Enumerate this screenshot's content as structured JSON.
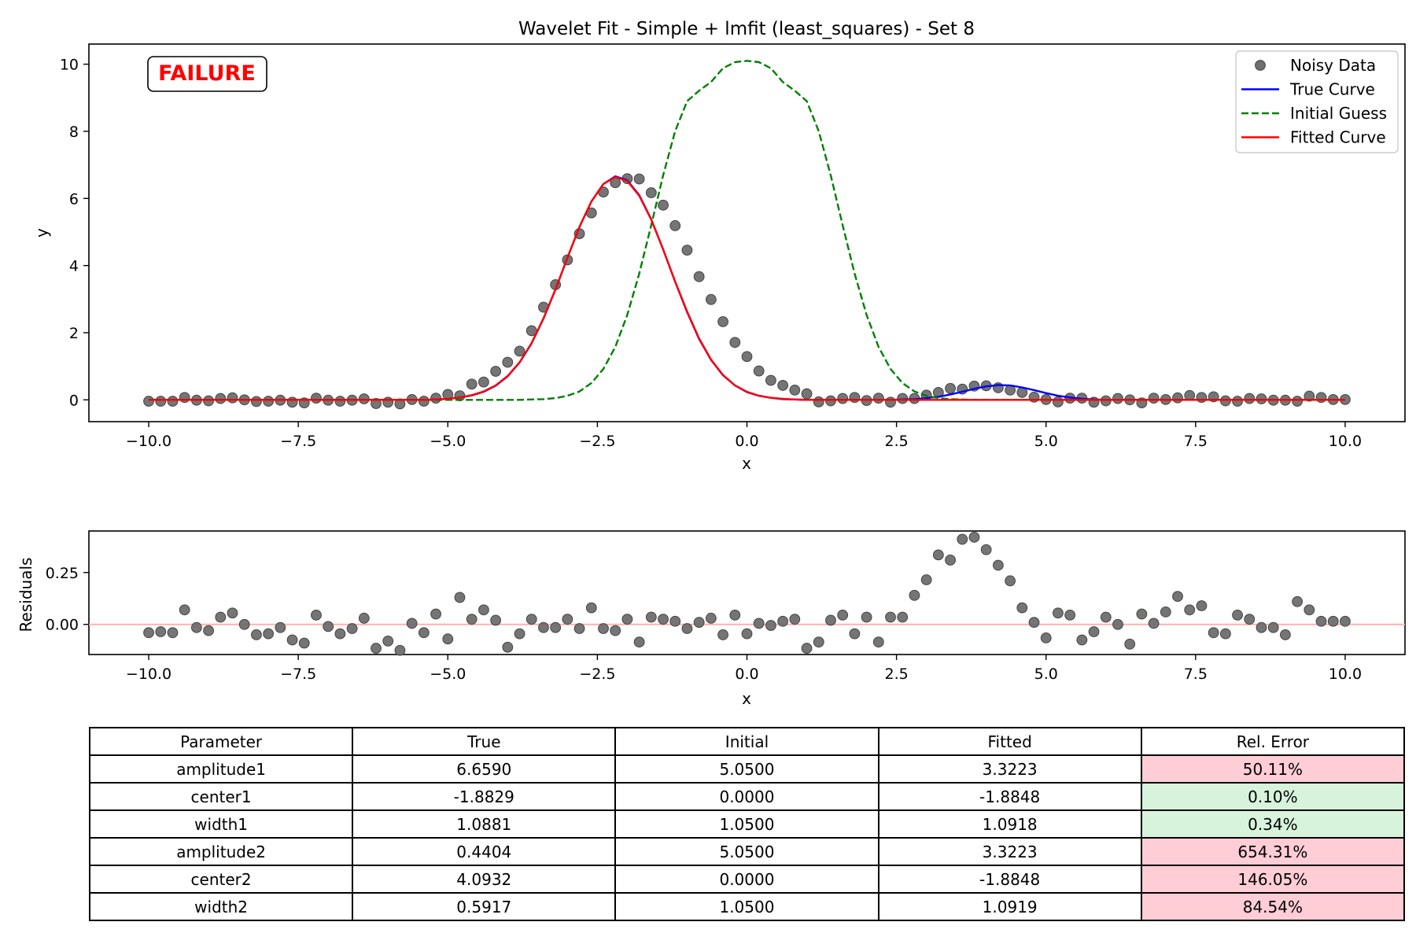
{
  "chart_data": [
    {
      "type": "line",
      "title": "Wavelet Fit - Simple + lmfit (least_squares) - Set 8",
      "xlabel": "x",
      "ylabel": "y",
      "xlim": [
        -11.0,
        11.0
      ],
      "ylim": [
        -0.65,
        10.6
      ],
      "x_ticks": [
        -10.0,
        -7.5,
        -5.0,
        -2.5,
        0.0,
        2.5,
        5.0,
        7.5,
        10.0
      ],
      "x_tick_labels": [
        "−10.0",
        "−7.5",
        "−5.0",
        "−2.5",
        "0.0",
        "2.5",
        "5.0",
        "7.5",
        "10.0"
      ],
      "y_ticks": [
        0,
        2,
        4,
        6,
        8,
        10
      ],
      "y_tick_labels": [
        "0",
        "2",
        "4",
        "6",
        "8",
        "10"
      ],
      "grid": false,
      "legend_position": "top-right",
      "annotation": "FAILURE",
      "x": [
        -10.0,
        -9.8,
        -9.6,
        -9.4,
        -9.2,
        -9.0,
        -8.8,
        -8.6,
        -8.4,
        -8.2,
        -8.0,
        -7.8,
        -7.6,
        -7.4,
        -7.2,
        -7.0,
        -6.8,
        -6.6,
        -6.4,
        -6.2,
        -6.0,
        -5.8,
        -5.6,
        -5.4,
        -5.2,
        -5.0,
        -4.8,
        -4.6,
        -4.4,
        -4.2,
        -4.0,
        -3.8,
        -3.6,
        -3.4,
        -3.2,
        -3.0,
        -2.8,
        -2.6,
        -2.4,
        -2.2,
        -2.0,
        -1.8,
        -1.6,
        -1.4,
        -1.2,
        -1.0,
        -0.8,
        -0.6,
        -0.4,
        -0.2,
        0.0,
        0.2,
        0.4,
        0.6,
        0.8,
        1.0,
        1.2,
        1.4,
        1.6,
        1.8,
        2.0,
        2.2,
        2.4,
        2.6,
        2.8,
        3.0,
        3.2,
        3.4,
        3.6,
        3.8,
        4.0,
        4.2,
        4.4,
        4.6,
        4.8,
        5.0,
        5.2,
        5.4,
        5.6,
        5.8,
        6.0,
        6.2,
        6.4,
        6.6,
        6.8,
        7.0,
        7.2,
        7.4,
        7.6,
        7.8,
        8.0,
        8.2,
        8.4,
        8.6,
        8.8,
        9.0,
        9.2,
        9.4,
        9.6,
        9.8,
        10.0
      ],
      "series": [
        {
          "name": "Noisy Data",
          "style": "scatter",
          "color": "#6e6e6e",
          "y": [
            -0.04,
            -0.04,
            -0.04,
            0.07,
            -0.01,
            -0.03,
            0.04,
            0.06,
            0.0,
            -0.05,
            -0.04,
            -0.01,
            -0.07,
            -0.09,
            0.05,
            -0.01,
            -0.04,
            -0.01,
            0.03,
            -0.11,
            -0.07,
            -0.12,
            0.01,
            -0.04,
            0.05,
            0.16,
            0.12,
            0.47,
            0.53,
            0.85,
            1.12,
            1.45,
            2.06,
            2.76,
            3.43,
            4.17,
            4.95,
            5.57,
            6.19,
            6.47,
            6.59,
            6.58,
            6.17,
            5.8,
            5.19,
            4.46,
            3.67,
            2.99,
            2.33,
            1.71,
            1.29,
            0.86,
            0.58,
            0.43,
            0.29,
            0.18,
            -0.06,
            -0.03,
            0.04,
            0.07,
            -0.02,
            0.05,
            -0.07,
            0.04,
            0.04,
            0.14,
            0.22,
            0.34,
            0.32,
            0.41,
            0.42,
            0.36,
            0.29,
            0.22,
            0.08,
            0.01,
            -0.06,
            0.05,
            0.05,
            -0.07,
            -0.03,
            0.04,
            0.0,
            -0.09,
            0.05,
            0.01,
            0.06,
            0.13,
            0.07,
            0.09,
            -0.03,
            -0.04,
            0.04,
            0.03,
            -0.01,
            -0.01,
            -0.04,
            0.11,
            0.07,
            0.01,
            0.01
          ]
        },
        {
          "name": "True Curve",
          "style": "solid",
          "color": "#0000ff",
          "y": [
            0.0,
            0.0,
            0.0,
            0.0,
            0.0,
            0.0,
            0.0,
            0.0,
            0.0,
            0.0,
            0.0,
            0.0,
            0.0,
            0.0,
            0.0,
            0.0,
            0.0,
            0.0,
            0.0,
            0.0,
            0.0,
            0.0,
            0.0,
            0.0,
            0.01,
            0.03,
            0.07,
            0.13,
            0.24,
            0.42,
            0.7,
            1.11,
            1.68,
            2.42,
            3.29,
            4.24,
            5.15,
            5.91,
            6.43,
            6.66,
            6.54,
            6.1,
            5.38,
            4.48,
            3.52,
            2.61,
            1.81,
            1.19,
            0.73,
            0.43,
            0.23,
            0.12,
            0.06,
            0.02,
            0.01,
            0.0,
            0.0,
            0.0,
            0.0,
            0.0,
            0.0,
            0.0,
            0.0,
            0.01,
            0.02,
            0.05,
            0.09,
            0.16,
            0.24,
            0.33,
            0.4,
            0.44,
            0.43,
            0.37,
            0.29,
            0.2,
            0.12,
            0.07,
            0.03,
            0.01,
            0.0,
            0.0,
            0.0,
            0.0,
            0.0,
            0.0,
            0.0,
            0.0,
            0.0,
            0.0,
            0.0,
            0.0,
            0.0,
            0.0,
            0.0,
            0.0,
            0.0,
            0.0,
            0.0,
            0.0,
            0.0
          ]
        },
        {
          "name": "Initial Guess",
          "style": "dashed",
          "color": "#008000",
          "y": [
            0.0,
            0.0,
            0.0,
            0.0,
            0.0,
            0.0,
            0.0,
            0.0,
            0.0,
            0.0,
            0.0,
            0.0,
            0.0,
            0.0,
            0.0,
            0.0,
            0.0,
            0.0,
            0.0,
            0.0,
            0.0,
            0.0,
            0.0,
            0.0,
            0.0,
            0.0,
            0.0,
            0.0,
            0.0,
            0.0,
            0.0,
            0.0,
            0.01,
            0.02,
            0.05,
            0.12,
            0.25,
            0.5,
            0.92,
            1.58,
            2.53,
            3.76,
            5.2,
            6.69,
            8.0,
            8.9,
            9.21,
            9.47,
            9.88,
            10.06,
            10.1,
            10.06,
            9.88,
            9.47,
            9.21,
            8.9,
            8.0,
            6.69,
            5.2,
            3.76,
            2.53,
            1.58,
            0.92,
            0.5,
            0.25,
            0.12,
            0.05,
            0.02,
            0.01,
            0.0,
            0.0,
            0.0,
            0.0,
            0.0,
            0.0,
            0.0,
            0.0,
            0.0,
            0.0,
            0.0,
            0.0,
            0.0,
            0.0,
            0.0,
            0.0,
            0.0,
            0.0,
            0.0,
            0.0,
            0.0,
            0.0,
            0.0,
            0.0,
            0.0,
            0.0,
            0.0,
            0.0,
            0.0,
            0.0,
            0.0,
            0.0
          ]
        },
        {
          "name": "Fitted Curve",
          "style": "solid",
          "color": "#ff0000",
          "y": [
            0.0,
            0.0,
            0.0,
            0.0,
            0.0,
            0.0,
            0.0,
            0.0,
            0.0,
            0.0,
            0.0,
            0.0,
            0.0,
            0.0,
            0.0,
            0.0,
            0.0,
            0.0,
            0.0,
            0.0,
            0.0,
            0.0,
            0.0,
            0.0,
            0.01,
            0.03,
            0.07,
            0.14,
            0.25,
            0.43,
            0.71,
            1.12,
            1.69,
            2.43,
            3.3,
            4.24,
            5.15,
            5.91,
            6.43,
            6.64,
            6.52,
            6.08,
            5.37,
            4.48,
            3.53,
            2.63,
            1.83,
            1.2,
            0.74,
            0.43,
            0.24,
            0.12,
            0.06,
            0.03,
            0.01,
            0.0,
            0.0,
            0.0,
            0.0,
            0.0,
            0.0,
            0.0,
            0.0,
            0.0,
            0.0,
            0.0,
            0.0,
            0.0,
            0.0,
            0.0,
            0.0,
            0.0,
            0.0,
            0.0,
            0.0,
            0.0,
            0.0,
            0.0,
            0.0,
            0.0,
            0.0,
            0.0,
            0.0,
            0.0,
            0.0,
            0.0,
            0.0,
            0.0,
            0.0,
            0.0,
            0.0,
            0.0,
            0.0,
            0.0,
            0.0,
            0.0,
            0.0,
            0.0,
            0.0,
            0.0,
            0.0
          ]
        }
      ]
    },
    {
      "type": "scatter",
      "title": "",
      "xlabel": "x",
      "ylabel": "Residuals",
      "xlim": [
        -11.0,
        11.0
      ],
      "ylim": [
        -0.145,
        0.45
      ],
      "x_ticks": [
        -10.0,
        -7.5,
        -5.0,
        -2.5,
        0.0,
        2.5,
        5.0,
        7.5,
        10.0
      ],
      "x_tick_labels": [
        "−10.0",
        "−7.5",
        "−5.0",
        "−2.5",
        "0.0",
        "2.5",
        "5.0",
        "7.5",
        "10.0"
      ],
      "y_ticks": [
        0.0,
        0.25
      ],
      "y_tick_labels": [
        "0.00",
        "0.25"
      ],
      "grid": false,
      "reference_line": {
        "y": 0.0,
        "color": "#ffb0b0"
      },
      "marker_color": "#6e6e6e",
      "x": [
        -10.0,
        -9.8,
        -9.6,
        -9.4,
        -9.2,
        -9.0,
        -8.8,
        -8.6,
        -8.4,
        -8.2,
        -8.0,
        -7.8,
        -7.6,
        -7.4,
        -7.2,
        -7.0,
        -6.8,
        -6.6,
        -6.4,
        -6.2,
        -6.0,
        -5.8,
        -5.6,
        -5.4,
        -5.2,
        -5.0,
        -4.8,
        -4.6,
        -4.4,
        -4.2,
        -4.0,
        -3.8,
        -3.6,
        -3.4,
        -3.2,
        -3.0,
        -2.8,
        -2.6,
        -2.4,
        -2.2,
        -2.0,
        -1.8,
        -1.6,
        -1.4,
        -1.2,
        -1.0,
        -0.8,
        -0.6,
        -0.4,
        -0.2,
        0.0,
        0.2,
        0.4,
        0.6,
        0.8,
        1.0,
        1.2,
        1.4,
        1.6,
        1.8,
        2.0,
        2.2,
        2.4,
        2.6,
        2.8,
        3.0,
        3.2,
        3.4,
        3.6,
        3.8,
        4.0,
        4.2,
        4.4,
        4.6,
        4.8,
        5.0,
        5.2,
        5.4,
        5.6,
        5.8,
        6.0,
        6.2,
        6.4,
        6.6,
        6.8,
        7.0,
        7.2,
        7.4,
        7.6,
        7.8,
        8.0,
        8.2,
        8.4,
        8.6,
        8.8,
        9.0,
        9.2,
        9.4,
        9.6,
        9.8,
        10.0
      ],
      "y": [
        -0.04,
        -0.035,
        -0.04,
        0.07,
        -0.015,
        -0.03,
        0.035,
        0.055,
        0.0,
        -0.05,
        -0.045,
        -0.015,
        -0.075,
        -0.09,
        0.045,
        -0.01,
        -0.045,
        -0.02,
        0.03,
        -0.115,
        -0.08,
        -0.125,
        0.005,
        -0.04,
        0.05,
        -0.07,
        0.13,
        0.025,
        0.07,
        0.02,
        -0.11,
        -0.045,
        0.025,
        -0.015,
        -0.015,
        0.025,
        -0.02,
        0.08,
        -0.02,
        -0.03,
        0.025,
        -0.085,
        0.035,
        0.025,
        0.015,
        -0.02,
        0.01,
        0.03,
        -0.05,
        0.045,
        -0.045,
        0.005,
        -0.005,
        0.015,
        0.025,
        -0.115,
        -0.085,
        0.02,
        0.045,
        -0.045,
        0.035,
        -0.085,
        0.035,
        0.035,
        0.14,
        0.215,
        0.335,
        0.31,
        0.41,
        0.42,
        0.36,
        0.285,
        0.21,
        0.08,
        0.01,
        -0.065,
        0.055,
        0.045,
        -0.075,
        -0.035,
        0.035,
        0.0,
        -0.095,
        0.05,
        0.005,
        0.06,
        0.135,
        0.07,
        0.09,
        -0.04,
        -0.045,
        0.045,
        0.025,
        -0.015,
        -0.015,
        -0.05,
        0.11,
        0.07,
        0.015,
        0.015,
        0.015
      ]
    },
    {
      "type": "table",
      "columns": [
        "Parameter",
        "True",
        "Initial",
        "Fitted",
        "Rel. Error"
      ],
      "rows": [
        {
          "cells": [
            "amplitude1",
            "6.6590",
            "5.0500",
            "3.3223",
            "50.11%"
          ],
          "status": "bad"
        },
        {
          "cells": [
            "center1",
            "-1.8829",
            "0.0000",
            "-1.8848",
            "0.10%"
          ],
          "status": "good"
        },
        {
          "cells": [
            "width1",
            "1.0881",
            "1.0500",
            "1.0918",
            "0.34%"
          ],
          "status": "good"
        },
        {
          "cells": [
            "amplitude2",
            "0.4404",
            "5.0500",
            "3.3223",
            "654.31%"
          ],
          "status": "bad"
        },
        {
          "cells": [
            "center2",
            "4.0932",
            "0.0000",
            "-1.8848",
            "146.05%"
          ],
          "status": "bad"
        },
        {
          "cells": [
            "width2",
            "0.5917",
            "1.0500",
            "1.0919",
            "84.54%"
          ],
          "status": "bad"
        }
      ]
    }
  ]
}
